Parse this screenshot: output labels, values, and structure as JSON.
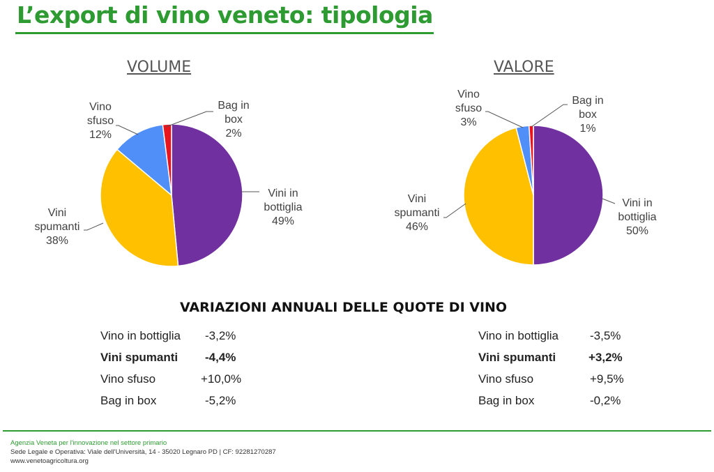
{
  "title": "L’export di vino veneto: tipologia",
  "chart_data": [
    {
      "type": "pie",
      "title": "VOLUME",
      "categories": [
        "Vini in bottiglia",
        "Vini spumanti",
        "Vino sfuso",
        "Bag in box"
      ],
      "values": [
        49,
        38,
        12,
        2
      ],
      "labels": [
        "49%",
        "38%",
        "12%",
        "2%"
      ],
      "colors": [
        "#7030a0",
        "#ffc000",
        "#4f8ff7",
        "#e8141e"
      ]
    },
    {
      "type": "pie",
      "title": "VALORE",
      "categories": [
        "Vini in bottiglia",
        "Vini spumanti",
        "Vino sfuso",
        "Bag in box"
      ],
      "values": [
        50,
        46,
        3,
        1
      ],
      "labels": [
        "50%",
        "46%",
        "3%",
        "1%"
      ],
      "colors": [
        "#7030a0",
        "#ffc000",
        "#4f8ff7",
        "#e8141e"
      ]
    }
  ],
  "pie_labels": {
    "volume": {
      "bottiglia": [
        "Vini in",
        "bottiglia",
        "49%"
      ],
      "spumanti": [
        "Vini",
        "spumanti",
        "38%"
      ],
      "sfuso": [
        "Vino",
        "sfuso",
        "12%"
      ],
      "bag": [
        "Bag in",
        "box",
        "2%"
      ]
    },
    "valore": {
      "bottiglia": [
        "Vini in",
        "bottiglia",
        "50%"
      ],
      "spumanti": [
        "Vini",
        "spumanti",
        "46%"
      ],
      "sfuso": [
        "Vino",
        "sfuso",
        "3%"
      ],
      "bag": [
        "Bag in",
        "box",
        "1%"
      ]
    }
  },
  "variations": {
    "title": "VARIAZIONI ANNUALI DELLE QUOTE DI VINO",
    "volume": [
      {
        "label": "Vino in bottiglia",
        "value": "-3,2%"
      },
      {
        "label": "Vini spumanti",
        "value": "-4,4%"
      },
      {
        "label": "Vino sfuso",
        "value": "+10,0%"
      },
      {
        "label": "Bag in box",
        "value": "-5,2%"
      }
    ],
    "valore": [
      {
        "label": "Vino in bottiglia",
        "value": "-3,5%"
      },
      {
        "label": "Vini spumanti",
        "value": "+3,2%"
      },
      {
        "label": "Vino sfuso",
        "value": "+9,5%"
      },
      {
        "label": "Bag in box",
        "value": "-0,2%"
      }
    ]
  },
  "footer": {
    "org": "Agenzia Veneta per l'innovazione nel settore primario",
    "address": "Sede Legale e Operativa: Viale dell'Università, 14 - 35020 Legnaro PD | CF: 92281270287",
    "web": "www.venetoagricoltura.org"
  }
}
